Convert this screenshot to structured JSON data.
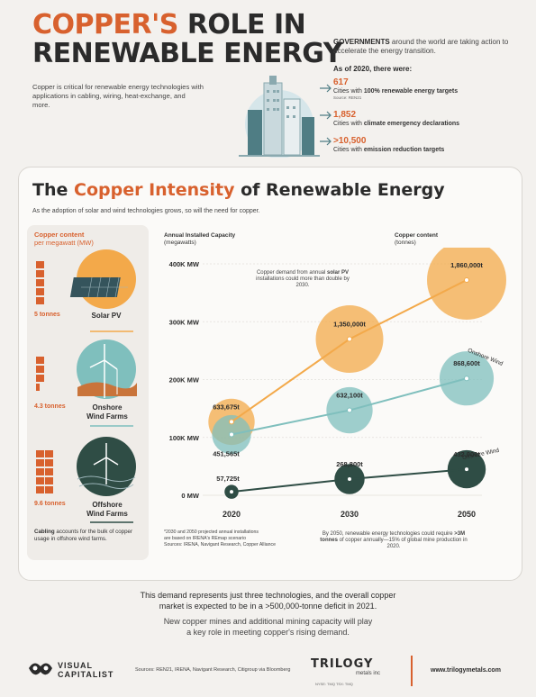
{
  "header": {
    "title_accent": "COPPER'S",
    "title_rest": " ROLE IN",
    "title_line2": "RENEWABLE ENERGY",
    "intro": "Copper is critical for renewable energy technologies with applications in cabling, wiring, heat-exchange, and more.",
    "gov_bold": "GOVERNMENTS",
    "gov_text": " around the world are taking action to accelerate the energy transition.",
    "as_of": "As of 2020, there were:",
    "stats": [
      {
        "num": "617",
        "pre": "Cities with ",
        "bold": "100% renewable energy targets",
        "source": "Source: REN21"
      },
      {
        "num": "1,852",
        "pre": "Cities with ",
        "bold": "climate emergency declarations",
        "source": ""
      },
      {
        "num": ">10,500",
        "pre": "Cities with ",
        "bold": "emission reduction targets",
        "source": ""
      }
    ]
  },
  "section": {
    "title_pre": "The ",
    "title_accent": "Copper Intensity",
    "title_post": " of Renewable Energy",
    "subtitle": "As the adoption of solar and wind technologies grows, so will the need for copper."
  },
  "left_panel": {
    "title": "Copper content",
    "title_sub": "per megawatt (MW)",
    "items": [
      {
        "tonnes": "5 tonnes",
        "label1": "Solar PV",
        "label2": ""
      },
      {
        "tonnes": "4.3 tonnes",
        "label1": "Onshore",
        "label2": "Wind Farms"
      },
      {
        "tonnes": "9.6 tonnes",
        "label1": "Offshore",
        "label2": "Wind Farms"
      }
    ],
    "cabling_bold": "Cabling",
    "cabling_text": " accounts for the bulk of copper usage in offshore wind farms."
  },
  "chart_labels": {
    "y_title1": "Annual Installed Capacity",
    "y_title2": "(megawatts)",
    "copper_title1": "Copper content",
    "copper_title2": "(tonnes)",
    "solar_note_pre": "Copper demand from annual ",
    "solar_note_bold": "solar PV",
    "solar_note_post": " installations could more than double by 2030.",
    "footnote1": "*2030 and 2050 projected annual installations",
    "footnote2": "are based on IRENA's REmap scenario",
    "footnote3": "Sources: IRENA, Navigant Research, Copper Alliance",
    "right_note_pre": "By 2050, renewable energy technologies could require ",
    "right_note_bold": ">3M tonnes",
    "right_note_post": " of copper annually—15% of global mine production in 2020."
  },
  "chart_data": {
    "type": "scatter",
    "title": "The Copper Intensity of Renewable Energy",
    "ylabel": "Annual Installed Capacity (megawatts)",
    "x": [
      "2020",
      "2030",
      "2050"
    ],
    "y_ticks": [
      "0 MW",
      "100K MW",
      "200K MW",
      "300K MW",
      "400K MW"
    ],
    "ylim": [
      0,
      400000
    ],
    "series": [
      {
        "name": "Solar PV",
        "color": "#f3a94a",
        "capacity_mw": [
          127000,
          270000,
          372000
        ],
        "copper_tonnes": [
          633675,
          1350000,
          1860000
        ],
        "labels": [
          "633,675t",
          "1,350,000t",
          "1,860,000t"
        ]
      },
      {
        "name": "Onshore Wind",
        "color": "#7fbfbd",
        "capacity_mw": [
          105000,
          147000,
          202000
        ],
        "copper_tonnes": [
          451565,
          632100,
          868600
        ],
        "labels": [
          "451,565t",
          "632,100t",
          "868,600t"
        ]
      },
      {
        "name": "Offshore Wind",
        "color": "#2f4d45",
        "capacity_mw": [
          6000,
          28000,
          45000
        ],
        "copper_tonnes": [
          57725,
          268800,
          432000
        ],
        "labels": [
          "57,725t",
          "268,800t",
          "432,000t"
        ]
      }
    ]
  },
  "bottom": {
    "line1": "This demand represents just three technologies, and the overall copper",
    "line2": "market is expected to be in a >500,000-tonne deficit in 2021.",
    "line3": "New copper mines and additional mining capacity will play",
    "line4": "a key role in meeting copper's rising demand."
  },
  "footer": {
    "vc1": "VISUAL",
    "vc2": "CAPITALIST",
    "sources": "Sources: REN21, IRENA, Navigant Research, Citigroup via Bloomberg",
    "trilogy": "TRILOGY",
    "trilogy_sub": "metals inc",
    "ticker": "NYSE: TMQ  TSX: TMQ",
    "website": "www.trilogymetals.com"
  }
}
